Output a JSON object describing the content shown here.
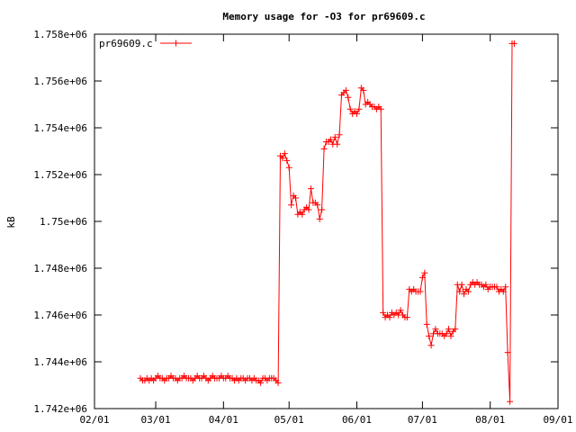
{
  "chart_data": {
    "type": "line",
    "title": "Memory usage for -O3 for pr69609.c",
    "ylabel": "kB",
    "xlabel": "",
    "legend": {
      "label": "pr69609.c",
      "position": "top-left"
    },
    "series_color": "#ff0000",
    "grid": false,
    "x_range": [
      "2015-02-01",
      "2015-09-01"
    ],
    "ylim": [
      1742000,
      1758000
    ],
    "x_ticks": [
      {
        "date": "2015-02-01",
        "label": "02/01"
      },
      {
        "date": "2015-03-01",
        "label": "03/01"
      },
      {
        "date": "2015-04-01",
        "label": "04/01"
      },
      {
        "date": "2015-05-01",
        "label": "05/01"
      },
      {
        "date": "2015-06-01",
        "label": "06/01"
      },
      {
        "date": "2015-07-01",
        "label": "07/01"
      },
      {
        "date": "2015-08-01",
        "label": "08/01"
      },
      {
        "date": "2015-09-01",
        "label": "09/01"
      }
    ],
    "y_ticks": [
      {
        "value": 1742000,
        "label": "1.742e+06"
      },
      {
        "value": 1744000,
        "label": "1.744e+06"
      },
      {
        "value": 1746000,
        "label": "1.746e+06"
      },
      {
        "value": 1748000,
        "label": "1.748e+06"
      },
      {
        "value": 1750000,
        "label": "1.75e+06"
      },
      {
        "value": 1752000,
        "label": "1.752e+06"
      },
      {
        "value": 1754000,
        "label": "1.754e+06"
      },
      {
        "value": 1756000,
        "label": "1.756e+06"
      },
      {
        "value": 1758000,
        "label": "1.758e+06"
      }
    ],
    "series": [
      {
        "name": "pr69609.c",
        "points": [
          [
            "2015-02-22",
            1743300
          ],
          [
            "2015-02-23",
            1743200
          ],
          [
            "2015-02-24",
            1743200
          ],
          [
            "2015-02-25",
            1743300
          ],
          [
            "2015-02-26",
            1743200
          ],
          [
            "2015-02-27",
            1743300
          ],
          [
            "2015-02-28",
            1743200
          ],
          [
            "2015-03-01",
            1743300
          ],
          [
            "2015-03-02",
            1743400
          ],
          [
            "2015-03-03",
            1743300
          ],
          [
            "2015-03-04",
            1743300
          ],
          [
            "2015-03-05",
            1743200
          ],
          [
            "2015-03-06",
            1743300
          ],
          [
            "2015-03-07",
            1743300
          ],
          [
            "2015-03-08",
            1743400
          ],
          [
            "2015-03-09",
            1743300
          ],
          [
            "2015-03-10",
            1743300
          ],
          [
            "2015-03-11",
            1743200
          ],
          [
            "2015-03-12",
            1743300
          ],
          [
            "2015-03-13",
            1743300
          ],
          [
            "2015-03-14",
            1743400
          ],
          [
            "2015-03-15",
            1743300
          ],
          [
            "2015-03-16",
            1743300
          ],
          [
            "2015-03-17",
            1743300
          ],
          [
            "2015-03-18",
            1743200
          ],
          [
            "2015-03-19",
            1743300
          ],
          [
            "2015-03-20",
            1743400
          ],
          [
            "2015-03-21",
            1743300
          ],
          [
            "2015-03-22",
            1743300
          ],
          [
            "2015-03-23",
            1743400
          ],
          [
            "2015-03-24",
            1743300
          ],
          [
            "2015-03-25",
            1743200
          ],
          [
            "2015-03-26",
            1743300
          ],
          [
            "2015-03-27",
            1743400
          ],
          [
            "2015-03-28",
            1743300
          ],
          [
            "2015-03-29",
            1743300
          ],
          [
            "2015-03-30",
            1743300
          ],
          [
            "2015-03-31",
            1743400
          ],
          [
            "2015-04-01",
            1743300
          ],
          [
            "2015-04-02",
            1743300
          ],
          [
            "2015-04-03",
            1743400
          ],
          [
            "2015-04-04",
            1743300
          ],
          [
            "2015-04-05",
            1743300
          ],
          [
            "2015-04-06",
            1743200
          ],
          [
            "2015-04-07",
            1743300
          ],
          [
            "2015-04-08",
            1743200
          ],
          [
            "2015-04-09",
            1743300
          ],
          [
            "2015-04-10",
            1743300
          ],
          [
            "2015-04-11",
            1743200
          ],
          [
            "2015-04-12",
            1743300
          ],
          [
            "2015-04-13",
            1743300
          ],
          [
            "2015-04-14",
            1743200
          ],
          [
            "2015-04-15",
            1743300
          ],
          [
            "2015-04-16",
            1743200
          ],
          [
            "2015-04-17",
            1743200
          ],
          [
            "2015-04-18",
            1743100
          ],
          [
            "2015-04-19",
            1743300
          ],
          [
            "2015-04-20",
            1743300
          ],
          [
            "2015-04-21",
            1743200
          ],
          [
            "2015-04-22",
            1743300
          ],
          [
            "2015-04-23",
            1743300
          ],
          [
            "2015-04-24",
            1743300
          ],
          [
            "2015-04-25",
            1743200
          ],
          [
            "2015-04-26",
            1743100
          ],
          [
            "2015-04-27",
            1752800
          ],
          [
            "2015-04-28",
            1752700
          ],
          [
            "2015-04-29",
            1752900
          ],
          [
            "2015-04-30",
            1752600
          ],
          [
            "2015-05-01",
            1752300
          ],
          [
            "2015-05-02",
            1750700
          ],
          [
            "2015-05-03",
            1751100
          ],
          [
            "2015-05-04",
            1751000
          ],
          [
            "2015-05-05",
            1750300
          ],
          [
            "2015-05-06",
            1750400
          ],
          [
            "2015-05-07",
            1750300
          ],
          [
            "2015-05-08",
            1750500
          ],
          [
            "2015-05-09",
            1750600
          ],
          [
            "2015-05-10",
            1750500
          ],
          [
            "2015-05-11",
            1751400
          ],
          [
            "2015-05-12",
            1750800
          ],
          [
            "2015-05-13",
            1750800
          ],
          [
            "2015-05-14",
            1750700
          ],
          [
            "2015-05-15",
            1750100
          ],
          [
            "2015-05-16",
            1750500
          ],
          [
            "2015-05-17",
            1753100
          ],
          [
            "2015-05-18",
            1753400
          ],
          [
            "2015-05-19",
            1753400
          ],
          [
            "2015-05-20",
            1753500
          ],
          [
            "2015-05-21",
            1753300
          ],
          [
            "2015-05-22",
            1753600
          ],
          [
            "2015-05-23",
            1753300
          ],
          [
            "2015-05-24",
            1753700
          ],
          [
            "2015-05-25",
            1755400
          ],
          [
            "2015-05-26",
            1755500
          ],
          [
            "2015-05-27",
            1755600
          ],
          [
            "2015-05-28",
            1755300
          ],
          [
            "2015-05-29",
            1754800
          ],
          [
            "2015-05-30",
            1754600
          ],
          [
            "2015-05-31",
            1754700
          ],
          [
            "2015-06-01",
            1754600
          ],
          [
            "2015-06-02",
            1754800
          ],
          [
            "2015-06-03",
            1755700
          ],
          [
            "2015-06-04",
            1755600
          ],
          [
            "2015-06-05",
            1755000
          ],
          [
            "2015-06-06",
            1755100
          ],
          [
            "2015-06-07",
            1755000
          ],
          [
            "2015-06-08",
            1754900
          ],
          [
            "2015-06-09",
            1754900
          ],
          [
            "2015-06-10",
            1754800
          ],
          [
            "2015-06-11",
            1754900
          ],
          [
            "2015-06-12",
            1754800
          ],
          [
            "2015-06-13",
            1746100
          ],
          [
            "2015-06-14",
            1745900
          ],
          [
            "2015-06-15",
            1746000
          ],
          [
            "2015-06-16",
            1745900
          ],
          [
            "2015-06-17",
            1746100
          ],
          [
            "2015-06-18",
            1746000
          ],
          [
            "2015-06-19",
            1746100
          ],
          [
            "2015-06-20",
            1746000
          ],
          [
            "2015-06-21",
            1746200
          ],
          [
            "2015-06-22",
            1746000
          ],
          [
            "2015-06-23",
            1745900
          ],
          [
            "2015-06-24",
            1745900
          ],
          [
            "2015-06-25",
            1747100
          ],
          [
            "2015-06-26",
            1747000
          ],
          [
            "2015-06-27",
            1747100
          ],
          [
            "2015-06-28",
            1747000
          ],
          [
            "2015-06-29",
            1747000
          ],
          [
            "2015-06-30",
            1747000
          ],
          [
            "2015-07-01",
            1747600
          ],
          [
            "2015-07-02",
            1747800
          ],
          [
            "2015-07-03",
            1745600
          ],
          [
            "2015-07-04",
            1745100
          ],
          [
            "2015-07-05",
            1744700
          ],
          [
            "2015-07-06",
            1745200
          ],
          [
            "2015-07-07",
            1745400
          ],
          [
            "2015-07-08",
            1745200
          ],
          [
            "2015-07-09",
            1745200
          ],
          [
            "2015-07-10",
            1745200
          ],
          [
            "2015-07-11",
            1745100
          ],
          [
            "2015-07-12",
            1745200
          ],
          [
            "2015-07-13",
            1745400
          ],
          [
            "2015-07-14",
            1745100
          ],
          [
            "2015-07-15",
            1745300
          ],
          [
            "2015-07-16",
            1745400
          ],
          [
            "2015-07-17",
            1747300
          ],
          [
            "2015-07-18",
            1747000
          ],
          [
            "2015-07-19",
            1747300
          ],
          [
            "2015-07-20",
            1746900
          ],
          [
            "2015-07-21",
            1747100
          ],
          [
            "2015-07-22",
            1747000
          ],
          [
            "2015-07-23",
            1747300
          ],
          [
            "2015-07-24",
            1747400
          ],
          [
            "2015-07-25",
            1747300
          ],
          [
            "2015-07-26",
            1747400
          ],
          [
            "2015-07-27",
            1747300
          ],
          [
            "2015-07-28",
            1747300
          ],
          [
            "2015-07-29",
            1747200
          ],
          [
            "2015-07-30",
            1747300
          ],
          [
            "2015-07-31",
            1747100
          ],
          [
            "2015-08-01",
            1747200
          ],
          [
            "2015-08-02",
            1747200
          ],
          [
            "2015-08-03",
            1747200
          ],
          [
            "2015-08-04",
            1747200
          ],
          [
            "2015-08-05",
            1747000
          ],
          [
            "2015-08-06",
            1747100
          ],
          [
            "2015-08-07",
            1747000
          ],
          [
            "2015-08-08",
            1747200
          ],
          [
            "2015-08-09",
            1744400
          ],
          [
            "2015-08-10",
            1742300
          ],
          [
            "2015-08-11",
            1757600
          ],
          [
            "2015-08-12",
            1757600
          ]
        ]
      }
    ]
  }
}
